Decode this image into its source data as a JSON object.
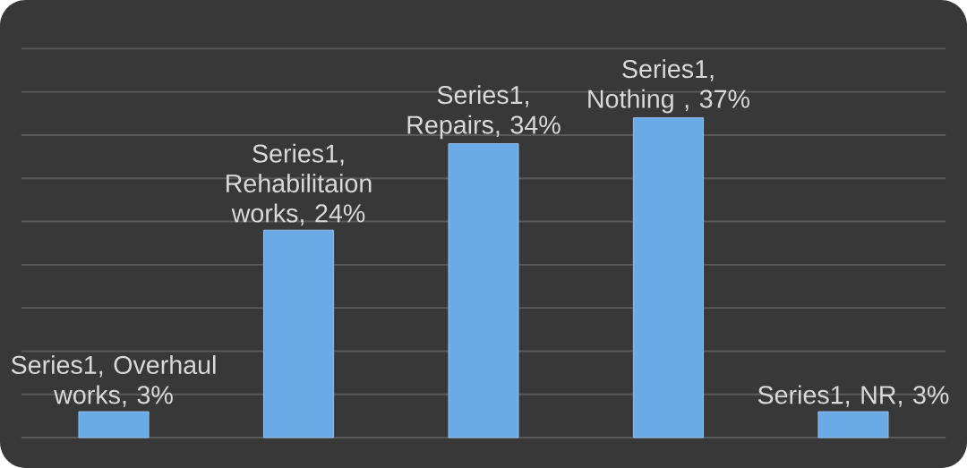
{
  "chart_data": {
    "type": "bar",
    "categories": [
      null,
      null,
      null,
      null,
      null
    ],
    "series": [
      {
        "color": "#6aaae6",
        "values": [
          3,
          24,
          34,
          37,
          3
        ],
        "value_labels": [
          "Series1, Overhaul works, 3%",
          "Series1, Rehabilitaion works, 24%",
          "Series1, Repairs, 34%",
          "Series1, Nothing , 37%",
          "Series1, NR, 3%"
        ]
      }
    ],
    "ylim": [
      0,
      45
    ],
    "yticks": [
      {
        "value": 0,
        "label": null
      },
      {
        "value": 5,
        "label": null
      },
      {
        "value": 10,
        "label": null
      },
      {
        "value": 15,
        "label": null
      },
      {
        "value": 20,
        "label": null
      },
      {
        "value": 25,
        "label": null
      },
      {
        "value": 30,
        "label": null
      },
      {
        "value": 35,
        "label": null
      },
      {
        "value": 40,
        "label": null
      },
      {
        "value": 45,
        "label": null
      }
    ],
    "grid": "y"
  }
}
